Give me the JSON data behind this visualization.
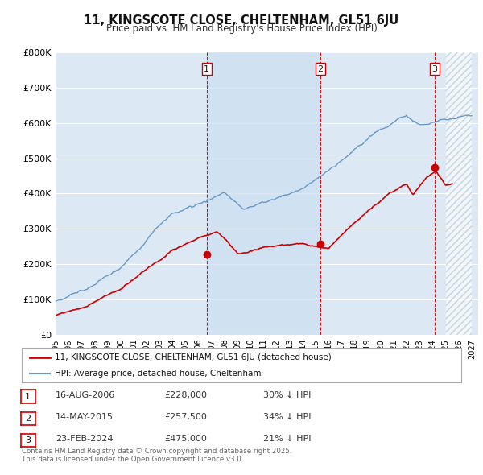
{
  "title": "11, KINGSCOTE CLOSE, CHELTENHAM, GL51 6JU",
  "subtitle": "Price paid vs. HM Land Registry's House Price Index (HPI)",
  "ylim": [
    0,
    800000
  ],
  "yticks": [
    0,
    100000,
    200000,
    300000,
    400000,
    500000,
    600000,
    700000,
    800000
  ],
  "ytick_labels": [
    "£0",
    "£100K",
    "£200K",
    "£300K",
    "£400K",
    "£500K",
    "£600K",
    "£700K",
    "£800K"
  ],
  "xlim_start": 1995.0,
  "xlim_end": 2027.5,
  "bg_color": "#dce9f5",
  "grid_color": "#ffffff",
  "transaction_dates": [
    2006.625,
    2015.37,
    2024.15
  ],
  "transaction_prices": [
    228000,
    257500,
    475000
  ],
  "transaction_labels": [
    "1",
    "2",
    "3"
  ],
  "red_line_color": "#cc0000",
  "blue_line_color": "#6699cc",
  "vline_color": "#cc0000",
  "highlight_color": "#ccdff0",
  "legend_house": "11, KINGSCOTE CLOSE, CHELTENHAM, GL51 6JU (detached house)",
  "legend_hpi": "HPI: Average price, detached house, Cheltenham",
  "table_rows": [
    [
      "1",
      "16-AUG-2006",
      "£228,000",
      "30% ↓ HPI"
    ],
    [
      "2",
      "14-MAY-2015",
      "£257,500",
      "34% ↓ HPI"
    ],
    [
      "3",
      "23-FEB-2024",
      "£475,000",
      "21% ↓ HPI"
    ]
  ],
  "footer": "Contains HM Land Registry data © Crown copyright and database right 2025.\nThis data is licensed under the Open Government Licence v3.0.",
  "hatch_start": 2025.0
}
